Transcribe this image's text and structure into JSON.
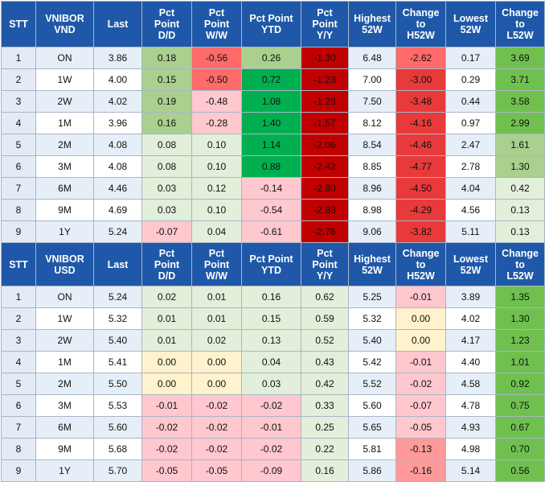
{
  "colors": {
    "header": "#1f58a8",
    "row_band": "#e6eff8",
    "light_green": "#e2efda",
    "mid_green": "#a9d08e",
    "bright_green": "#70c050",
    "deep_green": "#00b050",
    "light_pink": "#ffc7ce",
    "pink": "#ff9a9a",
    "red": "#e83a3a",
    "dark_red": "#c00000",
    "cream": "#fff2cc"
  },
  "tables": [
    {
      "headers": [
        "STT",
        "VNIBOR\nVND",
        "Last",
        "Pct\nPoint\nD/D",
        "Pct\nPoint\nW/W",
        "Pct Point\nYTD",
        "Pct\nPoint\nY/Y",
        "Highest\n52W",
        "Change\nto\nH52W",
        "Lowest\n52W",
        "Change\nto\nL52W"
      ],
      "rows": [
        [
          "1",
          "ON",
          "3.86",
          "0.18",
          "-0.56",
          "0.26",
          "-1.30",
          "6.48",
          "-2.62",
          "0.17",
          "3.69"
        ],
        [
          "2",
          "1W",
          "4.00",
          "0.15",
          "-0.50",
          "0.72",
          "-1.23",
          "7.00",
          "-3.00",
          "0.29",
          "3.71"
        ],
        [
          "3",
          "2W",
          "4.02",
          "0.19",
          "-0.48",
          "1.08",
          "-1.29",
          "7.50",
          "-3.48",
          "0.44",
          "3.58"
        ],
        [
          "4",
          "1M",
          "3.96",
          "0.16",
          "-0.28",
          "1.40",
          "-1.57",
          "8.12",
          "-4.16",
          "0.97",
          "2.99"
        ],
        [
          "5",
          "2M",
          "4.08",
          "0.08",
          "0.10",
          "1.14",
          "-2.06",
          "8.54",
          "-4.46",
          "2.47",
          "1.61"
        ],
        [
          "6",
          "3M",
          "4.08",
          "0.08",
          "0.10",
          "0.88",
          "-2.42",
          "8.85",
          "-4.77",
          "2.78",
          "1.30"
        ],
        [
          "7",
          "6M",
          "4.46",
          "0.03",
          "0.12",
          "-0.14",
          "-2.80",
          "8.96",
          "-4.50",
          "4.04",
          "0.42"
        ],
        [
          "8",
          "9M",
          "4.69",
          "0.03",
          "0.10",
          "-0.54",
          "-2.88",
          "8.98",
          "-4.29",
          "4.56",
          "0.13"
        ],
        [
          "9",
          "1Y",
          "5.24",
          "-0.07",
          "0.04",
          "-0.61",
          "-2.76",
          "9.06",
          "-3.82",
          "5.11",
          "0.13"
        ]
      ],
      "fills": [
        [
          "",
          "",
          "",
          "#a9d08e",
          "#ff6a6a",
          "#a9d08e",
          "#c00000",
          "",
          "#ff6a6a",
          "",
          "#70c050"
        ],
        [
          "",
          "",
          "",
          "#a9d08e",
          "#ff6a6a",
          "#00b050",
          "#c00000",
          "",
          "#e83a3a",
          "",
          "#70c050"
        ],
        [
          "",
          "",
          "",
          "#a9d08e",
          "#ffc7ce",
          "#00b050",
          "#c00000",
          "",
          "#e83a3a",
          "",
          "#70c050"
        ],
        [
          "",
          "",
          "",
          "#a9d08e",
          "#ffc7ce",
          "#00b050",
          "#c00000",
          "",
          "#e83a3a",
          "",
          "#70c050"
        ],
        [
          "",
          "",
          "",
          "#e2efda",
          "#e2efda",
          "#00b050",
          "#c00000",
          "",
          "#e83a3a",
          "",
          "#a9d08e"
        ],
        [
          "",
          "",
          "",
          "#e2efda",
          "#e2efda",
          "#00b050",
          "#c00000",
          "",
          "#e83a3a",
          "",
          "#a9d08e"
        ],
        [
          "",
          "",
          "",
          "#e2efda",
          "#e2efda",
          "#ffc7ce",
          "#c00000",
          "",
          "#e83a3a",
          "",
          "#e2efda"
        ],
        [
          "",
          "",
          "",
          "#e2efda",
          "#e2efda",
          "#ffc7ce",
          "#c00000",
          "",
          "#e83a3a",
          "",
          "#e2efda"
        ],
        [
          "",
          "",
          "",
          "#ffc7ce",
          "#e2efda",
          "#ffc7ce",
          "#c00000",
          "",
          "#e83a3a",
          "",
          "#e2efda"
        ]
      ]
    },
    {
      "headers": [
        "STT",
        "VNIBOR\nUSD",
        "Last",
        "Pct\nPoint\nD/D",
        "Pct\nPoint\nW/W",
        "Pct Point\nYTD",
        "Pct\nPoint\nY/Y",
        "Highest\n52W",
        "Change\nto\nH52W",
        "Lowest\n52W",
        "Change\nto\nL52W"
      ],
      "rows": [
        [
          "1",
          "ON",
          "5.24",
          "0.02",
          "0.01",
          "0.16",
          "0.62",
          "5.25",
          "-0.01",
          "3.89",
          "1.35"
        ],
        [
          "2",
          "1W",
          "5.32",
          "0.01",
          "0.01",
          "0.15",
          "0.59",
          "5.32",
          "0.00",
          "4.02",
          "1.30"
        ],
        [
          "3",
          "2W",
          "5.40",
          "0.01",
          "0.02",
          "0.13",
          "0.52",
          "5.40",
          "0.00",
          "4.17",
          "1.23"
        ],
        [
          "4",
          "1M",
          "5.41",
          "0.00",
          "0.00",
          "0.04",
          "0.43",
          "5.42",
          "-0.01",
          "4.40",
          "1.01"
        ],
        [
          "5",
          "2M",
          "5.50",
          "0.00",
          "0.00",
          "0.03",
          "0.42",
          "5.52",
          "-0.02",
          "4.58",
          "0.92"
        ],
        [
          "6",
          "3M",
          "5.53",
          "-0.01",
          "-0.02",
          "-0.02",
          "0.33",
          "5.60",
          "-0.07",
          "4.78",
          "0.75"
        ],
        [
          "7",
          "6M",
          "5.60",
          "-0.02",
          "-0.02",
          "-0.01",
          "0.25",
          "5.65",
          "-0.05",
          "4.93",
          "0.67"
        ],
        [
          "8",
          "9M",
          "5.68",
          "-0.02",
          "-0.02",
          "-0.02",
          "0.22",
          "5.81",
          "-0.13",
          "4.98",
          "0.70"
        ],
        [
          "9",
          "1Y",
          "5.70",
          "-0.05",
          "-0.05",
          "-0.09",
          "0.16",
          "5.86",
          "-0.16",
          "5.14",
          "0.56"
        ]
      ],
      "fills": [
        [
          "",
          "",
          "",
          "#e2efda",
          "#e2efda",
          "#e2efda",
          "#e2efda",
          "",
          "#ffc7ce",
          "",
          "#70c050"
        ],
        [
          "",
          "",
          "",
          "#e2efda",
          "#e2efda",
          "#e2efda",
          "#e2efda",
          "",
          "#fff2cc",
          "",
          "#70c050"
        ],
        [
          "",
          "",
          "",
          "#e2efda",
          "#e2efda",
          "#e2efda",
          "#e2efda",
          "",
          "#fff2cc",
          "",
          "#70c050"
        ],
        [
          "",
          "",
          "",
          "#fff2cc",
          "#fff2cc",
          "#e2efda",
          "#e2efda",
          "",
          "#ffc7ce",
          "",
          "#70c050"
        ],
        [
          "",
          "",
          "",
          "#fff2cc",
          "#fff2cc",
          "#e2efda",
          "#e2efda",
          "",
          "#ffc7ce",
          "",
          "#70c050"
        ],
        [
          "",
          "",
          "",
          "#ffc7ce",
          "#ffc7ce",
          "#ffc7ce",
          "#e2efda",
          "",
          "#ffc7ce",
          "",
          "#70c050"
        ],
        [
          "",
          "",
          "",
          "#ffc7ce",
          "#ffc7ce",
          "#ffc7ce",
          "#e2efda",
          "",
          "#ffc7ce",
          "",
          "#70c050"
        ],
        [
          "",
          "",
          "",
          "#ffc7ce",
          "#ffc7ce",
          "#ffc7ce",
          "#e2efda",
          "",
          "#ff9a9a",
          "",
          "#70c050"
        ],
        [
          "",
          "",
          "",
          "#ffc7ce",
          "#ffc7ce",
          "#ffc7ce",
          "#e2efda",
          "",
          "#ff9a9a",
          "",
          "#70c050"
        ]
      ]
    }
  ]
}
